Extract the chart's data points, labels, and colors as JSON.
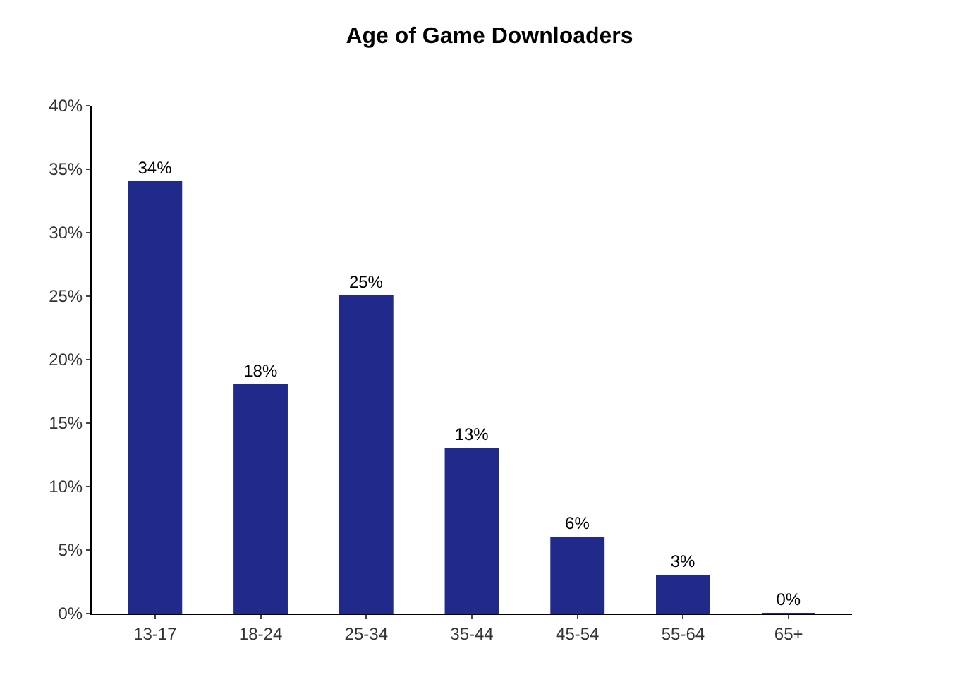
{
  "chart_data": {
    "type": "bar",
    "title": "Age of Game Downloaders",
    "categories": [
      "13-17",
      "18-24",
      "25-34",
      "35-44",
      "45-54",
      "55-64",
      "65+"
    ],
    "values": [
      34,
      18,
      25,
      13,
      6,
      3,
      0
    ],
    "value_labels": [
      "34%",
      "18%",
      "25%",
      "13%",
      "6%",
      "3%",
      "0%"
    ],
    "color": "#1f2a8a",
    "ylim": [
      0,
      40
    ],
    "yticks": [
      {
        "value": 0,
        "label": "0%"
      },
      {
        "value": 5,
        "label": "5%"
      },
      {
        "value": 10,
        "label": "10%"
      },
      {
        "value": 15,
        "label": "15%"
      },
      {
        "value": 20,
        "label": "20%"
      },
      {
        "value": 25,
        "label": "25%"
      },
      {
        "value": 30,
        "label": "30%"
      },
      {
        "value": 35,
        "label": "35%"
      },
      {
        "value": 40,
        "label": "40%"
      }
    ],
    "grid": false,
    "legend": false
  }
}
